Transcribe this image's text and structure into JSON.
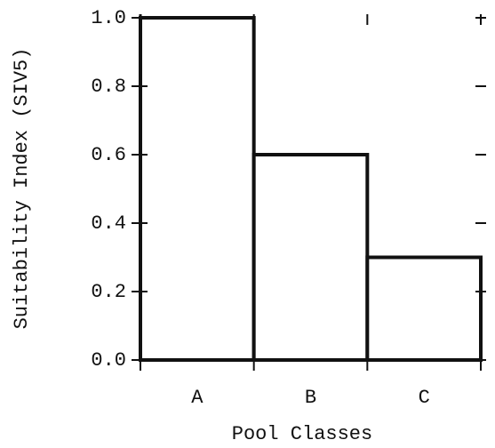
{
  "chart_data": {
    "type": "bar",
    "x_label": "Pool Classes",
    "y_label": "Suitability Index (SIV5)",
    "categories": [
      "A",
      "B",
      "C"
    ],
    "values": [
      1.0,
      0.6,
      0.3
    ],
    "color": "#ffffff",
    "ylim": [
      0,
      1
    ],
    "yticks": [
      {
        "value": 0,
        "label": "0.0"
      },
      0.2,
      0.4,
      0.6,
      0.8,
      {
        "value": 1,
        "label": "1.0"
      }
    ],
    "grid": false
  }
}
